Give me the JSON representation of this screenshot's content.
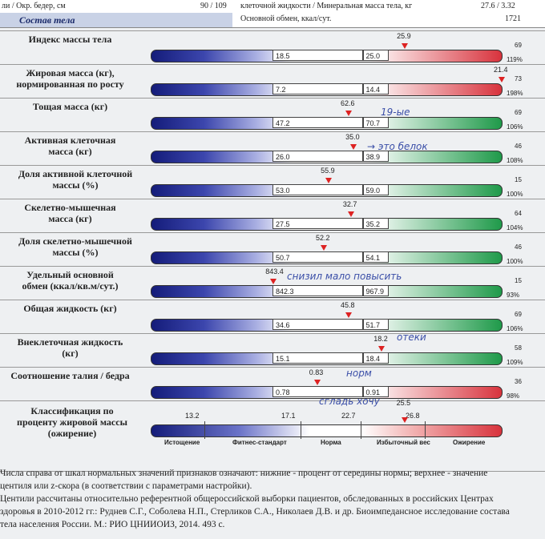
{
  "header": {
    "row1": [
      "ли / Окр. бедер, см",
      "90 / 109",
      "клеточной жидкости / Минеральная масса тела, кг",
      "27.6 / 3.32"
    ],
    "row2": [
      "Состав тела",
      "Основной обмен, ккал/сут.",
      "1721"
    ]
  },
  "rows": [
    {
      "label": "Индекс массы тела",
      "low": "18.5",
      "high": "25.0",
      "value": "25.9",
      "centile": "69",
      "percent": "119%",
      "excess_color": "#d8333d"
    },
    {
      "label": "Жировая масса (кг),\nнормированная по росту",
      "low": "7.2",
      "high": "14.4",
      "value": "21.4",
      "centile": "73",
      "percent": "198%",
      "excess_color": "#d8333d"
    },
    {
      "label": "Тощая масса (кг)",
      "low": "47.2",
      "high": "70.7",
      "value": "62.6",
      "centile": "69",
      "percent": "106%",
      "excess_color": "#1f9a4a"
    },
    {
      "label": "Активная клеточная\nмасса (кг)",
      "low": "26.0",
      "high": "38.9",
      "value": "35.0",
      "centile": "46",
      "percent": "108%",
      "excess_color": "#1f9a4a"
    },
    {
      "label": "Доля активной клеточной\nмассы (%)",
      "low": "53.0",
      "high": "59.0",
      "value": "55.9",
      "centile": "15",
      "percent": "100%",
      "excess_color": "#1f9a4a"
    },
    {
      "label": "Скелетно-мышечная\nмасса (кг)",
      "low": "27.5",
      "high": "35.2",
      "value": "32.7",
      "centile": "64",
      "percent": "104%",
      "excess_color": "#1f9a4a"
    },
    {
      "label": "Доля скелетно-мышечной\nмассы (%)",
      "low": "50.7",
      "high": "54.1",
      "value": "52.2",
      "centile": "46",
      "percent": "100%",
      "excess_color": "#1f9a4a"
    },
    {
      "label": "Удельный основной\nобмен (ккал/кв.м/сут.)",
      "low": "842.3",
      "high": "967.9",
      "value": "843.4",
      "centile": "15",
      "percent": "93%",
      "excess_color": "#1f9a4a"
    },
    {
      "label": "Общая жидкость (кг)",
      "low": "34.6",
      "high": "51.7",
      "value": "45.8",
      "centile": "69",
      "percent": "106%",
      "excess_color": "#1f9a4a"
    },
    {
      "label": "Внеклеточная жидкость\n(кг)",
      "low": "15.1",
      "high": "18.4",
      "value": "18.2",
      "centile": "58",
      "percent": "109%",
      "excess_color": "#1f9a4a"
    },
    {
      "label": "Соотношение талия / бедра",
      "low": "0.78",
      "high": "0.91",
      "value": "0.83",
      "centile": "36",
      "percent": "98%",
      "excess_color": "#d8333d"
    }
  ],
  "classification": {
    "label": "Классификация по\nпроценту жировой массы\n(ожирение)",
    "scale": [
      "13.2",
      "17.1",
      "22.7",
      "26.8"
    ],
    "value": "25.5",
    "zones": [
      "Истощение",
      "Фитнес-стандарт",
      "Норма",
      "Избыточный вес",
      "Ожирение"
    ]
  },
  "notes": [
    "19-ые",
    "→ это белок",
    "снизил мало повысить",
    "отеки",
    "норм",
    "сгладь хочу"
  ],
  "footer": [
    "Числа справа от шкал нормальных значений признаков означают: нижние - процент от середины нормы; верхнее - значение",
    "центиля или z-скора (в соответствии с параметрами настройки).",
    "Центили рассчитаны относительно референтной общероссийской выборки пациентов, обследованных в российских Центрах",
    "здоровья в 2010-2012 гг.: Руднев С.Г., Соболева Н.П., Стерликов С.А., Николаев Д.В. и др. Биоимпедансное исследование состава",
    "тела населения России. М.: РИО ЦНИИОИЗ, 2014. 493 с."
  ]
}
